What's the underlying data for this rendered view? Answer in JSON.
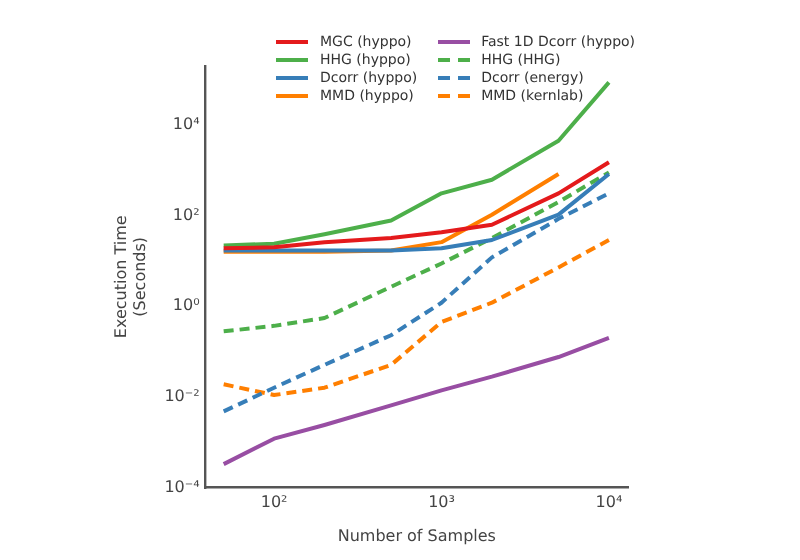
{
  "chart_data": {
    "type": "line",
    "xlabel": "Number of Samples",
    "ylabel": "Execution Time\n(Seconds)",
    "log": "xy",
    "grid": false,
    "legend": "top",
    "marker": "none",
    "x": [
      50,
      100,
      200,
      500,
      1000,
      2000,
      5000,
      10000
    ],
    "xlim": [
      39,
      13000
    ],
    "xticks": [
      {
        "value": 100,
        "label": "10²"
      },
      {
        "value": 1000,
        "label": "10³"
      },
      {
        "value": 10000,
        "label": "10⁴"
      }
    ],
    "ylim": [
      0.0001,
      200000
    ],
    "yticks": [
      {
        "value": 0.0001,
        "label": "10⁻⁴"
      },
      {
        "value": 0.01,
        "label": "10⁻²"
      },
      {
        "value": 1,
        "label": "10⁰"
      },
      {
        "value": 100,
        "label": "10²"
      },
      {
        "value": 10000,
        "label": "10⁴"
      }
    ],
    "series": [
      {
        "name": "MGC (hyppo)",
        "color": "#e41a1c",
        "line_style": "solid",
        "values": [
          19,
          20,
          26,
          32,
          43,
          63,
          310,
          1500
        ]
      },
      {
        "name": "HHG (hyppo)",
        "color": "#4daf4a",
        "line_style": "solid",
        "values": [
          22,
          24,
          39,
          78,
          310,
          620,
          4500,
          87000
        ]
      },
      {
        "name": "Dcorr (hyppo)",
        "color": "#377eb8",
        "line_style": "solid",
        "values": [
          17,
          17,
          17,
          17,
          19,
          29,
          105,
          830
        ]
      },
      {
        "name": "MMD (hyppo)",
        "color": "#ff7f00",
        "line_style": "solid",
        "values": [
          16,
          16,
          16,
          17,
          26,
          105,
          830,
          null
        ]
      },
      {
        "name": "Fast 1D Dcorr (hyppo)",
        "color": "#984ea3",
        "line_style": "solid",
        "values": [
          0.00033,
          0.0012,
          0.0024,
          0.0065,
          0.014,
          0.028,
          0.076,
          0.2
        ]
      },
      {
        "name": "HHG (HHG)",
        "color": "#4daf4a",
        "line_style": "dashed",
        "values": [
          0.28,
          0.37,
          0.55,
          2.7,
          8.8,
          32,
          200,
          900
        ]
      },
      {
        "name": "Dcorr (energy)",
        "color": "#377eb8",
        "line_style": "dashed",
        "values": [
          0.0048,
          0.016,
          0.051,
          0.23,
          1.2,
          12,
          85,
          310
        ]
      },
      {
        "name": "MMD (kernlab)",
        "color": "#ff7f00",
        "line_style": "dashed",
        "values": [
          0.019,
          0.011,
          0.016,
          0.051,
          0.45,
          1.2,
          7.2,
          29
        ]
      }
    ]
  }
}
